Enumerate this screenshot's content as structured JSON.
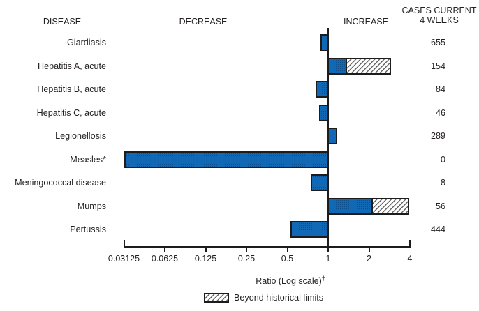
{
  "header": {
    "disease": "DISEASE",
    "decrease": "DECREASE",
    "increase": "INCREASE",
    "cases_line1": "CASES CURRENT",
    "cases_line2": "4 WEEKS"
  },
  "chart_data": {
    "type": "bar",
    "orientation": "horizontal",
    "x_scale": "log2",
    "xlabel": "Ratio (Log scale)",
    "xlabel_note_symbol": "†",
    "xlim": [
      0.03125,
      4
    ],
    "baseline_value": 1,
    "axis_ticks": [
      0.03125,
      0.0625,
      0.125,
      0.25,
      0.5,
      1,
      2,
      4
    ],
    "tick_labels": [
      "0.03125",
      "0.0625",
      "0.125",
      "0.25",
      "0.5",
      "1",
      "2",
      "4"
    ],
    "legend": {
      "beyond_label": "Beyond historical limits"
    },
    "rows": [
      {
        "disease": "Giardiasis",
        "ratio": 0.88,
        "beyond": null,
        "cases": "655"
      },
      {
        "disease": "Hepatitis A, acute",
        "ratio": 1.38,
        "beyond": 2.9,
        "cases": "154"
      },
      {
        "disease": "Hepatitis B, acute",
        "ratio": 0.81,
        "beyond": null,
        "cases": "84"
      },
      {
        "disease": "Hepatitis C, acute",
        "ratio": 0.86,
        "beyond": null,
        "cases": "46"
      },
      {
        "disease": "Legionellosis",
        "ratio": 1.17,
        "beyond": null,
        "cases": "289"
      },
      {
        "disease": "Measles*",
        "ratio": 0.03125,
        "beyond": null,
        "cases": "0"
      },
      {
        "disease": "Meningococcal disease",
        "ratio": 0.74,
        "beyond": null,
        "cases": "8"
      },
      {
        "disease": "Mumps",
        "ratio": 2.13,
        "beyond": 3.97,
        "cases": "56"
      },
      {
        "disease": "Pertussis",
        "ratio": 0.53,
        "beyond": null,
        "cases": "444"
      }
    ],
    "colors": {
      "bar_fill": "#1168b4",
      "bar_speckle": "#0b4f8f",
      "bar_border": "#1c1c1c",
      "hatch_line": "#666666",
      "text": "#231f20"
    }
  }
}
